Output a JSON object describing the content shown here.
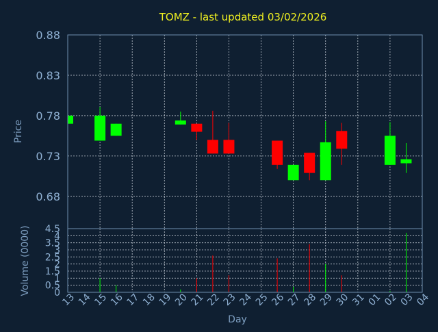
{
  "chart_data": {
    "type": "candlestick",
    "title": "TOMZ - last updated 03/02/2026",
    "xlabel": "Day",
    "price_panel": {
      "ylabel": "Price",
      "ylim": [
        0.64,
        0.88
      ],
      "yticks": [
        "0.88",
        "0.83",
        "0.78",
        "0.73",
        "0.68"
      ],
      "ytick_values": [
        0.88,
        0.83,
        0.78,
        0.73,
        0.68
      ]
    },
    "volume_panel": {
      "ylabel": "Volume (0000)",
      "ylim": [
        0,
        4.5
      ],
      "yticks": [
        "4.5",
        "4",
        "3.5",
        "3",
        "2.5",
        "2",
        "1.5",
        "1",
        "0.5",
        "0"
      ],
      "ytick_values": [
        4.5,
        4,
        3.5,
        3,
        2.5,
        2,
        1.5,
        1,
        0.5,
        0
      ]
    },
    "x_ticks": [
      "13",
      "14",
      "15",
      "16",
      "17",
      "18",
      "19",
      "20",
      "21",
      "22",
      "23",
      "24",
      "25",
      "26",
      "27",
      "28",
      "29",
      "30",
      "31",
      "01",
      "02",
      "03",
      "04"
    ],
    "x_gridlines": [
      "15",
      "17",
      "19",
      "21",
      "23",
      "25",
      "27",
      "29",
      "31",
      "02"
    ],
    "candles": [
      {
        "day": "13",
        "open": 0.77,
        "high": 0.78,
        "low": 0.77,
        "close": 0.78,
        "volume": 0.0
      },
      {
        "day": "15",
        "open": 0.749,
        "high": 0.791,
        "low": 0.749,
        "close": 0.78,
        "volume": 1.0
      },
      {
        "day": "16",
        "open": 0.755,
        "high": 0.77,
        "low": 0.755,
        "close": 0.77,
        "volume": 0.5
      },
      {
        "day": "20",
        "open": 0.769,
        "high": 0.785,
        "low": 0.769,
        "close": 0.774,
        "volume": 0.2
      },
      {
        "day": "21",
        "open": 0.77,
        "high": 0.77,
        "low": 0.75,
        "close": 0.76,
        "volume": 1.0
      },
      {
        "day": "22",
        "open": 0.75,
        "high": 0.786,
        "low": 0.733,
        "close": 0.733,
        "volume": 2.6
      },
      {
        "day": "23",
        "open": 0.75,
        "high": 0.771,
        "low": 0.733,
        "close": 0.733,
        "volume": 1.2
      },
      {
        "day": "26",
        "open": 0.749,
        "high": 0.749,
        "low": 0.714,
        "close": 0.719,
        "volume": 2.4
      },
      {
        "day": "27",
        "open": 0.7,
        "high": 0.719,
        "low": 0.7,
        "close": 0.719,
        "volume": 0.4
      },
      {
        "day": "28",
        "open": 0.734,
        "high": 0.734,
        "low": 0.7,
        "close": 0.709,
        "volume": 3.4
      },
      {
        "day": "29",
        "open": 0.7,
        "high": 0.773,
        "low": 0.7,
        "close": 0.747,
        "volume": 2.0
      },
      {
        "day": "30",
        "open": 0.761,
        "high": 0.771,
        "low": 0.719,
        "close": 0.739,
        "volume": 1.2
      },
      {
        "day": "02",
        "open": 0.719,
        "high": 0.772,
        "low": 0.719,
        "close": 0.755,
        "volume": 0.1
      },
      {
        "day": "03",
        "open": 0.721,
        "high": 0.746,
        "low": 0.709,
        "close": 0.726,
        "volume": 4.2
      }
    ],
    "colors": {
      "background": "#0f1f31",
      "plot_background": "#0f1f31",
      "up": "#00ff00",
      "down": "#ff0000",
      "title": "#f0f020",
      "axis_text": "#8fb0d2",
      "frame": "#6f8fb0",
      "grid": "#dfe6ee"
    }
  }
}
